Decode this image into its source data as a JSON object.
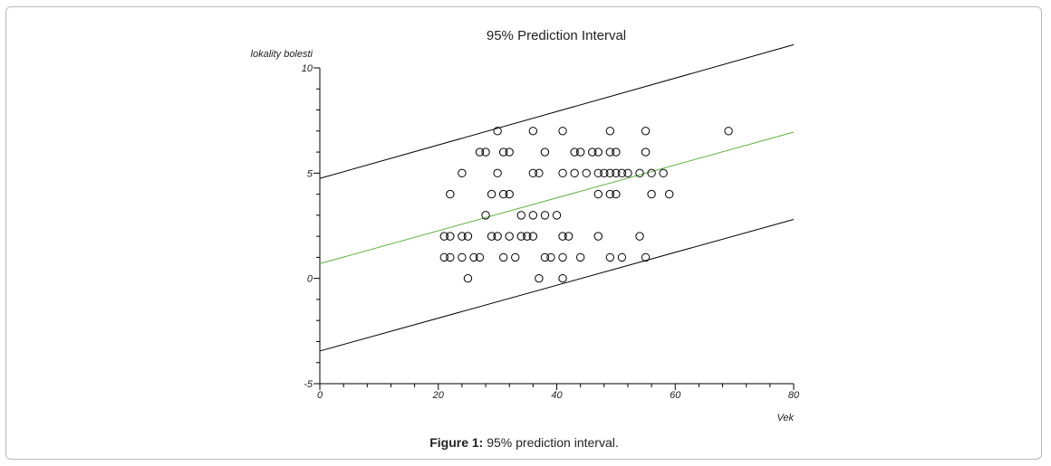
{
  "figure": {
    "caption_label": "Figure 1:",
    "caption_text": " 95% prediction interval."
  },
  "chart_data": {
    "type": "scatter",
    "title": "95% Prediction Interval",
    "xlabel": "Vek",
    "ylabel": "lokality bolesti",
    "xlim": [
      0,
      80
    ],
    "ylim": [
      -5,
      10
    ],
    "x_ticks": [
      0,
      20,
      40,
      60,
      80
    ],
    "y_ticks": [
      -5,
      0,
      5,
      10
    ],
    "grid": false,
    "legend": "none",
    "points_series": {
      "marker": "open-circle",
      "color": "#000000",
      "points": [
        [
          21,
          2
        ],
        [
          22,
          2
        ],
        [
          21,
          1
        ],
        [
          22,
          1
        ],
        [
          22,
          4
        ],
        [
          24,
          5
        ],
        [
          24,
          2
        ],
        [
          25,
          2
        ],
        [
          24,
          1
        ],
        [
          25,
          0
        ],
        [
          26,
          1
        ],
        [
          27,
          1
        ],
        [
          27,
          6
        ],
        [
          28,
          6
        ],
        [
          28,
          3
        ],
        [
          29,
          4
        ],
        [
          29,
          2
        ],
        [
          30,
          2
        ],
        [
          30,
          5
        ],
        [
          30,
          7
        ],
        [
          31,
          6
        ],
        [
          32,
          6
        ],
        [
          31,
          4
        ],
        [
          32,
          4
        ],
        [
          31,
          1
        ],
        [
          32,
          2
        ],
        [
          33,
          1
        ],
        [
          34,
          3
        ],
        [
          34,
          2
        ],
        [
          35,
          2
        ],
        [
          36,
          2
        ],
        [
          36,
          3
        ],
        [
          36,
          5
        ],
        [
          37,
          5
        ],
        [
          36,
          7
        ],
        [
          37,
          0
        ],
        [
          38,
          6
        ],
        [
          38,
          3
        ],
        [
          38,
          1
        ],
        [
          39,
          1
        ],
        [
          40,
          3
        ],
        [
          41,
          2
        ],
        [
          42,
          2
        ],
        [
          41,
          1
        ],
        [
          41,
          0
        ],
        [
          41,
          5
        ],
        [
          41,
          7
        ],
        [
          43,
          6
        ],
        [
          44,
          6
        ],
        [
          43,
          5
        ],
        [
          45,
          5
        ],
        [
          44,
          1
        ],
        [
          46,
          6
        ],
        [
          47,
          6
        ],
        [
          47,
          5
        ],
        [
          48,
          5
        ],
        [
          47,
          4
        ],
        [
          47,
          2
        ],
        [
          49,
          7
        ],
        [
          49,
          6
        ],
        [
          50,
          6
        ],
        [
          49,
          5
        ],
        [
          50,
          5
        ],
        [
          51,
          5
        ],
        [
          52,
          5
        ],
        [
          49,
          4
        ],
        [
          50,
          4
        ],
        [
          49,
          1
        ],
        [
          51,
          1
        ],
        [
          54,
          5
        ],
        [
          54,
          2
        ],
        [
          55,
          7
        ],
        [
          55,
          6
        ],
        [
          56,
          5
        ],
        [
          58,
          5
        ],
        [
          56,
          4
        ],
        [
          59,
          4
        ],
        [
          55,
          1
        ],
        [
          69,
          7
        ]
      ]
    },
    "lines": [
      {
        "name": "",
        "color": "#000000",
        "x": [
          0,
          80
        ],
        "y": [
          4.75,
          11.1
        ]
      },
      {
        "name": "",
        "color": "#5fb043",
        "x": [
          0,
          80
        ],
        "y": [
          0.7,
          6.95
        ]
      },
      {
        "name": "",
        "color": "#000000",
        "x": [
          0,
          80
        ],
        "y": [
          -3.45,
          2.8
        ]
      }
    ]
  }
}
